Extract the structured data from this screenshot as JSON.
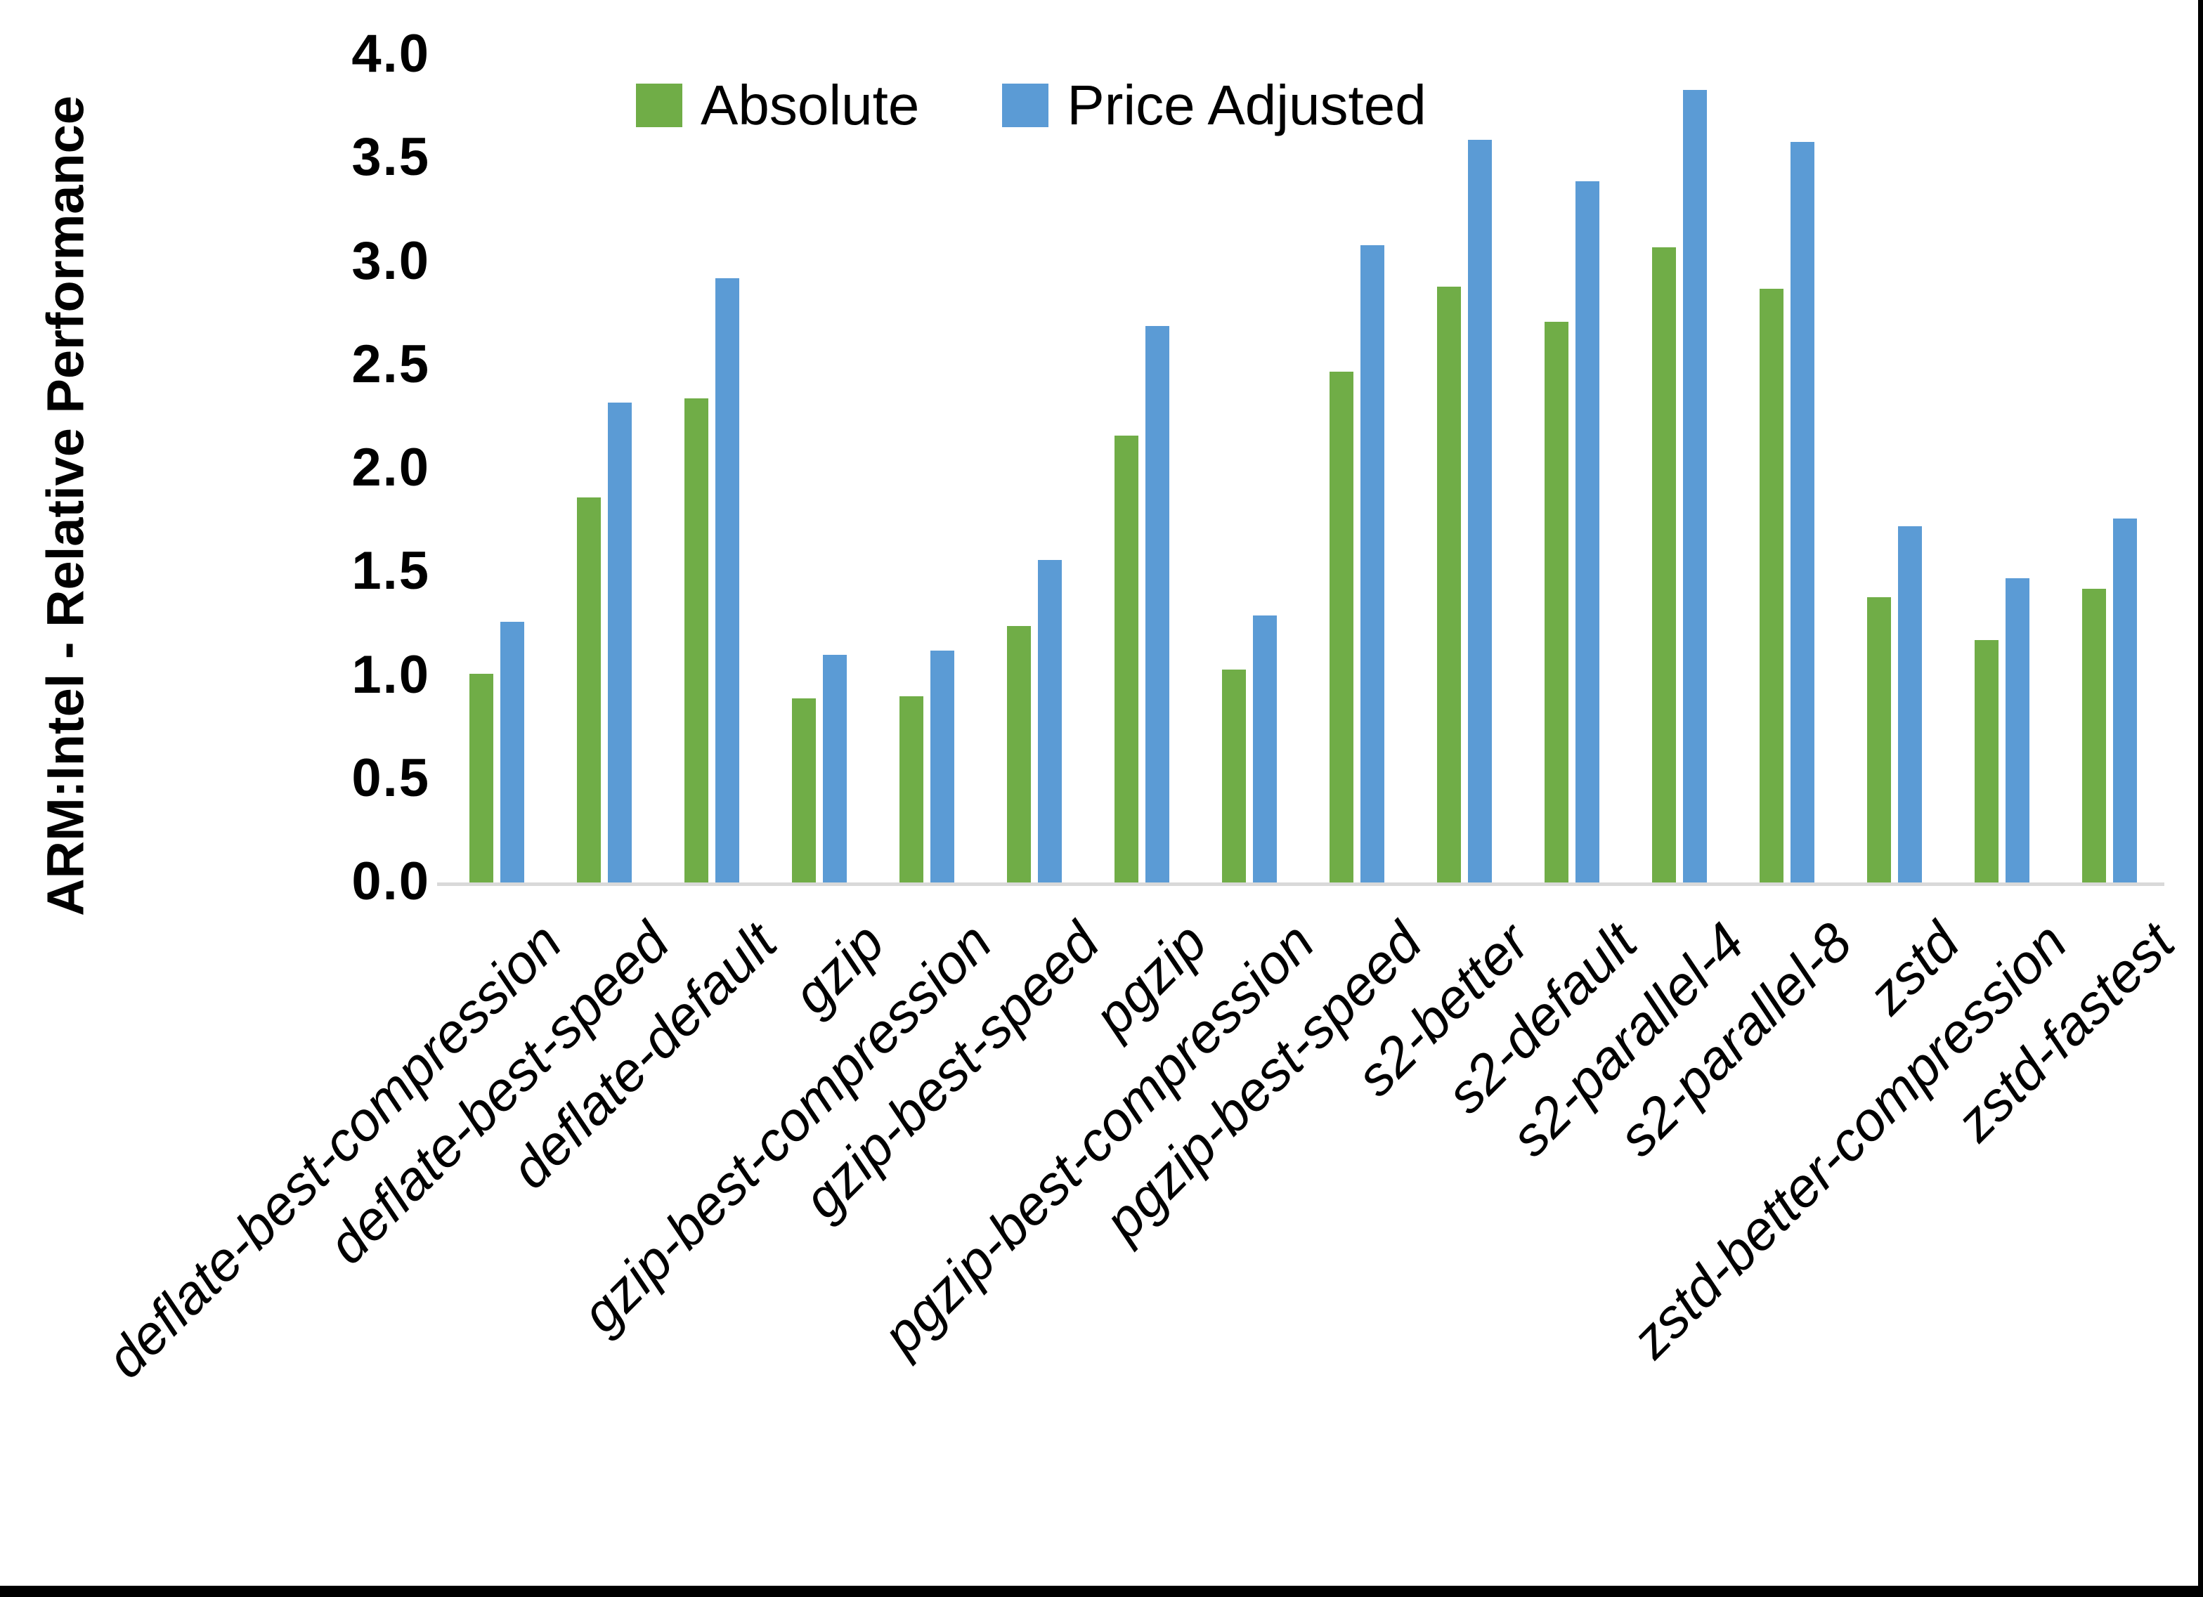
{
  "page": {
    "background": "#ffffff",
    "frame": {
      "right_border_color": "#000000",
      "bottom_border_color": "#000000"
    }
  },
  "legend": {
    "items": [
      {
        "label": "Absolute",
        "color": "#70AD47"
      },
      {
        "label": "Price Adjusted",
        "color": "#5B9BD5"
      }
    ]
  },
  "y_axis": {
    "title": "ARM:Intel - Relative Performance",
    "tick_labels": [
      "0.0",
      "0.5",
      "1.0",
      "1.5",
      "2.0",
      "2.5",
      "3.0",
      "3.5",
      "4.0"
    ],
    "axis_line_color": "#D9D9D9"
  },
  "chart_data": {
    "type": "bar",
    "title": "",
    "xlabel": "",
    "ylabel": "ARM:Intel - Relative Performance",
    "ylim": [
      0.0,
      4.0
    ],
    "ytick_step": 0.5,
    "grid": false,
    "legend_position": "top-center",
    "x_label_rotation_deg": 45,
    "categories": [
      "deflate-best-compression",
      "deflate-best-speed",
      "deflate-default",
      "gzip",
      "gzip-best-compression",
      "gzip-best-speed",
      "pgzip",
      "pgzip-best-compression",
      "pgzip-best-speed",
      "s2-better",
      "s2-default",
      "s2-parallel-4",
      "s2-parallel-8",
      "zstd",
      "zstd-better-compression",
      "zstd-fastest"
    ],
    "series": [
      {
        "name": "Absolute",
        "color": "#70AD47",
        "values": [
          1.01,
          1.86,
          2.34,
          0.89,
          0.9,
          1.24,
          2.16,
          1.03,
          2.47,
          2.88,
          2.71,
          3.07,
          2.87,
          1.38,
          1.17,
          1.42
        ]
      },
      {
        "name": "Price Adjusted",
        "color": "#5B9BD5",
        "values": [
          1.26,
          2.32,
          2.92,
          1.1,
          1.12,
          1.56,
          2.69,
          1.29,
          3.08,
          3.59,
          3.39,
          3.83,
          3.58,
          1.72,
          1.47,
          1.76
        ]
      }
    ]
  }
}
